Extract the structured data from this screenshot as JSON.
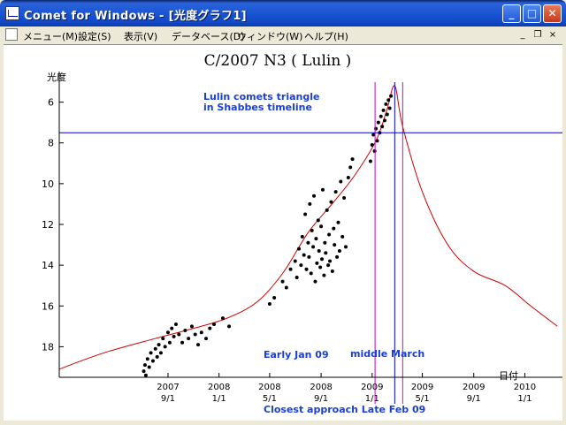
{
  "window": {
    "title": "Comet for Windows - [光度グラフ1]",
    "controls": {
      "minimize": "_",
      "maximize": "□",
      "close": "✕"
    }
  },
  "menu": {
    "items": [
      "メニュー(M)",
      "設定(S)",
      "表示(V)",
      "データベース(D)",
      "ウィンドウ(W)",
      "ヘルプ(H)"
    ],
    "mdi": {
      "minimize": "_",
      "restore": "❐",
      "close": "×"
    }
  },
  "chart_data": {
    "type": "scatter",
    "title": "C/2007 N3 ( Lulin )",
    "ylabel": "光度",
    "xlabel": "日付",
    "y_inverted": true,
    "ylim": [
      19.5,
      4.5
    ],
    "yticks": [
      6,
      8,
      10,
      12,
      14,
      16,
      18
    ],
    "xlim": [
      "2006-12-15",
      "2010-04-01"
    ],
    "xticks": [
      {
        "date": "2007-09-01",
        "year": "2007",
        "md": "9/1"
      },
      {
        "date": "2008-01-01",
        "year": "2008",
        "md": "1/1"
      },
      {
        "date": "2008-05-01",
        "year": "2008",
        "md": "5/1"
      },
      {
        "date": "2008-09-01",
        "year": "2008",
        "md": "9/1"
      },
      {
        "date": "2009-01-01",
        "year": "2009",
        "md": "1/1"
      },
      {
        "date": "2009-05-01",
        "year": "2009",
        "md": "5/1"
      },
      {
        "date": "2009-09-01",
        "year": "2009",
        "md": "9/1"
      },
      {
        "date": "2010-01-01",
        "year": "2010",
        "md": "1/1"
      }
    ],
    "magnitude_curve": {
      "color": "#cc0000",
      "points": [
        [
          "2006-12-15",
          19.1
        ],
        [
          "2007-04-01",
          18.3
        ],
        [
          "2007-08-01",
          17.6
        ],
        [
          "2007-11-01",
          17.1
        ],
        [
          "2008-01-20",
          16.6
        ],
        [
          "2008-04-01",
          15.8
        ],
        [
          "2008-06-01",
          14.4
        ],
        [
          "2008-08-01",
          12.4
        ],
        [
          "2008-10-01",
          10.9
        ],
        [
          "2008-11-20",
          9.6
        ],
        [
          "2009-01-10",
          7.9
        ],
        [
          "2009-02-05",
          6.4
        ],
        [
          "2009-02-24",
          5.2
        ],
        [
          "2009-03-15",
          7.2
        ],
        [
          "2009-05-01",
          10.4
        ],
        [
          "2009-07-01",
          13.0
        ],
        [
          "2009-09-01",
          14.3
        ],
        [
          "2009-11-15",
          15.0
        ],
        [
          "2010-01-15",
          16.0
        ],
        [
          "2010-03-20",
          17.0
        ]
      ]
    },
    "observations": {
      "color": "#000000",
      "points": [
        [
          "2007-07-05",
          19.2
        ],
        [
          "2007-07-08",
          18.9
        ],
        [
          "2007-07-10",
          19.4
        ],
        [
          "2007-07-14",
          18.6
        ],
        [
          "2007-07-18",
          19.0
        ],
        [
          "2007-07-22",
          18.3
        ],
        [
          "2007-07-27",
          18.7
        ],
        [
          "2007-08-02",
          18.1
        ],
        [
          "2007-08-06",
          18.5
        ],
        [
          "2007-08-10",
          17.9
        ],
        [
          "2007-08-15",
          18.3
        ],
        [
          "2007-08-20",
          17.6
        ],
        [
          "2007-08-25",
          18.0
        ],
        [
          "2007-09-01",
          17.3
        ],
        [
          "2007-09-05",
          17.8
        ],
        [
          "2007-09-10",
          17.1
        ],
        [
          "2007-09-15",
          17.5
        ],
        [
          "2007-09-20",
          16.9
        ],
        [
          "2007-09-27",
          17.4
        ],
        [
          "2007-10-05",
          17.8
        ],
        [
          "2007-10-12",
          17.2
        ],
        [
          "2007-10-20",
          17.6
        ],
        [
          "2007-10-28",
          17.0
        ],
        [
          "2007-11-05",
          17.4
        ],
        [
          "2007-11-12",
          17.9
        ],
        [
          "2007-11-20",
          17.3
        ],
        [
          "2007-12-01",
          17.6
        ],
        [
          "2007-12-10",
          17.1
        ],
        [
          "2007-12-20",
          16.9
        ],
        [
          "2008-01-10",
          16.6
        ],
        [
          "2008-01-25",
          17.0
        ],
        [
          "2008-05-01",
          15.9
        ],
        [
          "2008-05-12",
          15.6
        ],
        [
          "2008-06-01",
          14.8
        ],
        [
          "2008-06-10",
          15.1
        ],
        [
          "2008-06-20",
          14.2
        ],
        [
          "2008-07-01",
          13.8
        ],
        [
          "2008-07-05",
          14.6
        ],
        [
          "2008-07-10",
          13.2
        ],
        [
          "2008-07-15",
          14.0
        ],
        [
          "2008-07-18",
          12.6
        ],
        [
          "2008-07-22",
          13.5
        ],
        [
          "2008-07-25",
          11.5
        ],
        [
          "2008-07-28",
          14.2
        ],
        [
          "2008-08-01",
          12.9
        ],
        [
          "2008-08-03",
          13.6
        ],
        [
          "2008-08-05",
          11.0
        ],
        [
          "2008-08-08",
          14.4
        ],
        [
          "2008-08-10",
          12.3
        ],
        [
          "2008-08-13",
          13.1
        ],
        [
          "2008-08-15",
          10.6
        ],
        [
          "2008-08-18",
          14.8
        ],
        [
          "2008-08-20",
          12.7
        ],
        [
          "2008-08-22",
          13.9
        ],
        [
          "2008-08-25",
          11.8
        ],
        [
          "2008-08-27",
          13.3
        ],
        [
          "2008-08-30",
          14.1
        ],
        [
          "2008-09-01",
          12.1
        ],
        [
          "2008-09-03",
          13.7
        ],
        [
          "2008-09-05",
          10.3
        ],
        [
          "2008-09-08",
          14.5
        ],
        [
          "2008-09-10",
          12.9
        ],
        [
          "2008-09-12",
          13.4
        ],
        [
          "2008-09-15",
          11.3
        ],
        [
          "2008-09-18",
          14.0
        ],
        [
          "2008-09-20",
          12.5
        ],
        [
          "2008-09-22",
          13.8
        ],
        [
          "2008-09-25",
          10.9
        ],
        [
          "2008-09-28",
          14.3
        ],
        [
          "2008-10-01",
          12.2
        ],
        [
          "2008-10-03",
          13.0
        ],
        [
          "2008-10-06",
          10.4
        ],
        [
          "2008-10-09",
          13.6
        ],
        [
          "2008-10-12",
          11.9
        ],
        [
          "2008-10-15",
          13.3
        ],
        [
          "2008-10-18",
          9.9
        ],
        [
          "2008-10-22",
          12.6
        ],
        [
          "2008-10-26",
          10.7
        ],
        [
          "2008-10-30",
          13.1
        ],
        [
          "2008-11-05",
          9.7
        ],
        [
          "2008-11-10",
          9.2
        ],
        [
          "2008-11-15",
          8.8
        ],
        [
          "2008-12-28",
          8.9
        ],
        [
          "2009-01-01",
          8.1
        ],
        [
          "2009-01-04",
          7.6
        ],
        [
          "2009-01-07",
          8.4
        ],
        [
          "2009-01-10",
          7.3
        ],
        [
          "2009-01-13",
          7.9
        ],
        [
          "2009-01-16",
          7.0
        ],
        [
          "2009-01-19",
          7.5
        ],
        [
          "2009-01-22",
          6.7
        ],
        [
          "2009-01-25",
          7.2
        ],
        [
          "2009-01-28",
          6.4
        ],
        [
          "2009-01-31",
          6.9
        ],
        [
          "2009-02-03",
          6.1
        ],
        [
          "2009-02-06",
          6.6
        ],
        [
          "2009-02-09",
          5.9
        ],
        [
          "2009-02-12",
          6.3
        ],
        [
          "2009-02-15",
          5.7
        ]
      ]
    },
    "reference_lines": {
      "vertical": [
        {
          "date": "2009-01-08",
          "color": "#cc00cc"
        },
        {
          "date": "2009-02-24",
          "color": "#0000cc"
        },
        {
          "date": "2009-03-15",
          "color": "#cc00cc"
        }
      ],
      "horizontal": [
        {
          "y": 7.5,
          "color": "#0000cc"
        }
      ]
    },
    "annotations": {
      "triangle": "Lulin comets triangle\nin Shabbes timeline",
      "early": "Early Jan 09",
      "middle": "middle March",
      "closest": "Closest approach Late Feb 09"
    },
    "annotation_color": "#1a3fd8"
  }
}
